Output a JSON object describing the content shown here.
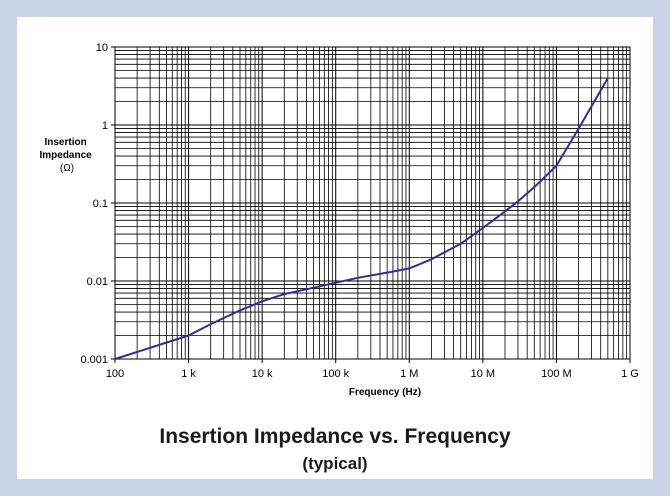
{
  "page": {
    "background": "#c9d5e6",
    "panel_color": "#ffffff"
  },
  "chart_data": {
    "type": "line",
    "title": "Insertion Impedance vs. Frequency",
    "subtitle": "(typical)",
    "xlabel": "Frequency (Hz)",
    "ylabel_lines": [
      "Insertion",
      "Impedance",
      "(Ω)"
    ],
    "x_scale": "log",
    "y_scale": "log",
    "xlim": [
      100,
      1000000000
    ],
    "ylim": [
      0.001,
      10
    ],
    "x_ticks": [
      {
        "value": 100,
        "label": "100"
      },
      {
        "value": 1000,
        "label": "1 k"
      },
      {
        "value": 10000,
        "label": "10 k"
      },
      {
        "value": 100000,
        "label": "100 k"
      },
      {
        "value": 1000000,
        "label": "1 M"
      },
      {
        "value": 10000000,
        "label": "10 M"
      },
      {
        "value": 100000000,
        "label": "100 M"
      },
      {
        "value": 1000000000,
        "label": "1 G"
      }
    ],
    "y_ticks": [
      {
        "value": 0.001,
        "label": "0.001"
      },
      {
        "value": 0.01,
        "label": "0.01"
      },
      {
        "value": 0.1,
        "label": "0.1"
      },
      {
        "value": 1,
        "label": "1"
      },
      {
        "value": 10,
        "label": "10"
      }
    ],
    "grid": true,
    "series": [
      {
        "color": "#2e3192",
        "x": [
          100,
          1000,
          2000,
          5000,
          10000,
          20000,
          50000,
          100000,
          200000,
          500000,
          1000000,
          2000000,
          5000000,
          10000000,
          20000000,
          30000000,
          50000000,
          100000000,
          200000000,
          500000000
        ],
        "y": [
          0.001,
          0.002,
          0.0028,
          0.0042,
          0.0055,
          0.0068,
          0.0082,
          0.0095,
          0.011,
          0.0128,
          0.0145,
          0.019,
          0.03,
          0.048,
          0.078,
          0.105,
          0.16,
          0.3,
          0.9,
          4.0
        ]
      }
    ]
  }
}
